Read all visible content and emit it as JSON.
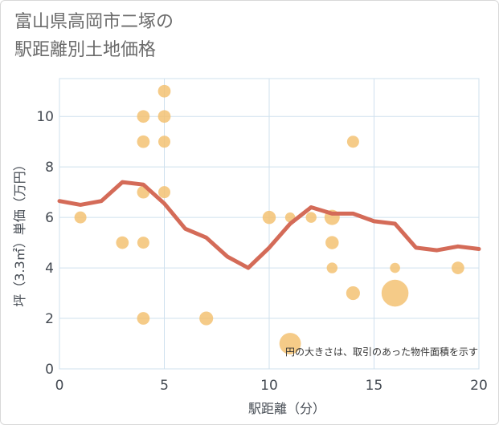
{
  "title_lines": [
    "富山県高岡市二塚の",
    "駅距離別土地価格"
  ],
  "chart_data": {
    "type": "scatter",
    "xlabel": "駅距離（分）",
    "ylabel": "坪（3.3㎡）単価（万円）",
    "xlim": [
      0,
      20
    ],
    "ylim": [
      0,
      11.5
    ],
    "xticks": [
      0,
      5,
      10,
      15,
      20
    ],
    "yticks": [
      0,
      2,
      4,
      6,
      8,
      10
    ],
    "grid": true,
    "note": "円の大きさは、取引のあった物件面積を示す",
    "colors": {
      "bubble": "#f3c06e",
      "line": "#d46b58",
      "grid": "#cfe0ee"
    },
    "points": [
      {
        "x": 1,
        "y": 6.0,
        "size": 1
      },
      {
        "x": 3,
        "y": 5.0,
        "size": 1.1
      },
      {
        "x": 4,
        "y": 10.0,
        "size": 1.1
      },
      {
        "x": 4,
        "y": 9.0,
        "size": 1.1
      },
      {
        "x": 4,
        "y": 7.0,
        "size": 1.1
      },
      {
        "x": 4,
        "y": 5.0,
        "size": 1
      },
      {
        "x": 4,
        "y": 2.0,
        "size": 1.1
      },
      {
        "x": 5,
        "y": 11.0,
        "size": 1.1
      },
      {
        "x": 5,
        "y": 10.0,
        "size": 1.1
      },
      {
        "x": 5,
        "y": 9.0,
        "size": 1
      },
      {
        "x": 5,
        "y": 7.0,
        "size": 1
      },
      {
        "x": 7,
        "y": 2.0,
        "size": 1.3
      },
      {
        "x": 10,
        "y": 6.0,
        "size": 1.2
      },
      {
        "x": 11,
        "y": 6.0,
        "size": 0.7
      },
      {
        "x": 11,
        "y": 1.0,
        "size": 3.2
      },
      {
        "x": 12,
        "y": 6.0,
        "size": 0.8
      },
      {
        "x": 13,
        "y": 6.0,
        "size": 1.6
      },
      {
        "x": 13,
        "y": 5.0,
        "size": 1.2
      },
      {
        "x": 13,
        "y": 4.0,
        "size": 0.8
      },
      {
        "x": 14,
        "y": 9.0,
        "size": 1
      },
      {
        "x": 14,
        "y": 3.0,
        "size": 1.3
      },
      {
        "x": 16,
        "y": 3.0,
        "size": 5.0
      },
      {
        "x": 16,
        "y": 4.0,
        "size": 0.7
      },
      {
        "x": 19,
        "y": 4.0,
        "size": 1.1
      }
    ],
    "trend": {
      "x": [
        0,
        1,
        2,
        3,
        4,
        5,
        6,
        7,
        8,
        9,
        10,
        11,
        12,
        13,
        14,
        15,
        16,
        17,
        18,
        19,
        20
      ],
      "y": [
        6.65,
        6.5,
        6.65,
        7.4,
        7.3,
        6.55,
        5.55,
        5.2,
        4.45,
        4.0,
        4.8,
        5.75,
        6.4,
        6.15,
        6.15,
        5.85,
        5.75,
        4.8,
        4.7,
        4.85,
        4.75
      ]
    }
  }
}
